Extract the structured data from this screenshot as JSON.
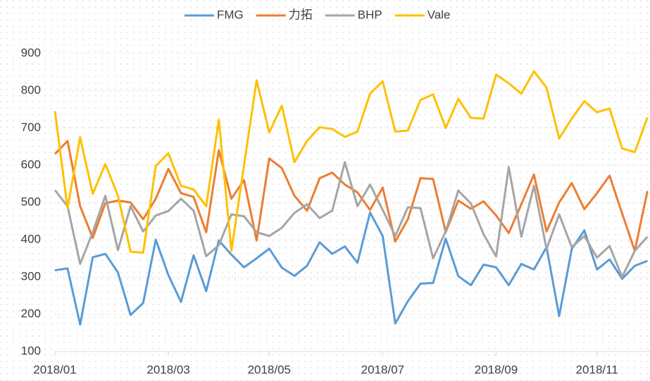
{
  "chart_data": {
    "type": "line",
    "categories": [
      "2018/01",
      null,
      null,
      null,
      null,
      null,
      null,
      null,
      null,
      "2018/03",
      null,
      null,
      null,
      null,
      null,
      null,
      null,
      "2018/05",
      null,
      null,
      null,
      null,
      null,
      null,
      null,
      null,
      "2018/07",
      null,
      null,
      null,
      null,
      null,
      null,
      null,
      null,
      "2018/09",
      null,
      null,
      null,
      null,
      null,
      null,
      null,
      "2018/11",
      null,
      null,
      null,
      null
    ],
    "series": [
      {
        "name": "FMG",
        "color": "#5b9bd5",
        "values": [
          318,
          323,
          172,
          353,
          362,
          312,
          198,
          230,
          400,
          305,
          233,
          358,
          262,
          398,
          360,
          326,
          350,
          376,
          325,
          303,
          330,
          393,
          362,
          382,
          338,
          473,
          410,
          175,
          235,
          282,
          284,
          403,
          302,
          278,
          333,
          326,
          278,
          335,
          320,
          380,
          195,
          375,
          425,
          320,
          347,
          295,
          330,
          343
        ]
      },
      {
        "name": "力拓",
        "color": "#ed7d31",
        "values": [
          630,
          665,
          490,
          405,
          498,
          505,
          500,
          455,
          510,
          590,
          525,
          515,
          420,
          640,
          510,
          560,
          398,
          618,
          592,
          518,
          478,
          565,
          580,
          548,
          527,
          480,
          540,
          395,
          455,
          565,
          563,
          420,
          505,
          483,
          503,
          465,
          418,
          495,
          575,
          422,
          500,
          552,
          482,
          525,
          572,
          470,
          370,
          530
        ]
      },
      {
        "name": "BHP",
        "color": "#a5a5a5",
        "values": [
          533,
          490,
          335,
          420,
          518,
          372,
          490,
          422,
          465,
          477,
          510,
          478,
          356,
          385,
          468,
          463,
          420,
          410,
          432,
          472,
          495,
          458,
          478,
          608,
          490,
          548,
          480,
          410,
          487,
          485,
          350,
          422,
          532,
          497,
          415,
          355,
          595,
          408,
          545,
          375,
          468,
          380,
          410,
          352,
          383,
          300,
          370,
          408
        ]
      },
      {
        "name": "Vale",
        "color": "#ffc000",
        "values": [
          745,
          485,
          675,
          523,
          603,
          518,
          368,
          365,
          598,
          632,
          545,
          535,
          490,
          722,
          370,
          600,
          828,
          688,
          760,
          608,
          665,
          702,
          697,
          676,
          690,
          792,
          825,
          690,
          693,
          775,
          790,
          700,
          778,
          727,
          725,
          843,
          820,
          792,
          852,
          808,
          672,
          725,
          772,
          742,
          752,
          645,
          635,
          728
        ]
      }
    ],
    "ylim": [
      100,
      900
    ],
    "yticks": [
      100,
      200,
      300,
      400,
      500,
      600,
      700,
      800,
      900
    ],
    "grid": true,
    "legend": "top"
  }
}
